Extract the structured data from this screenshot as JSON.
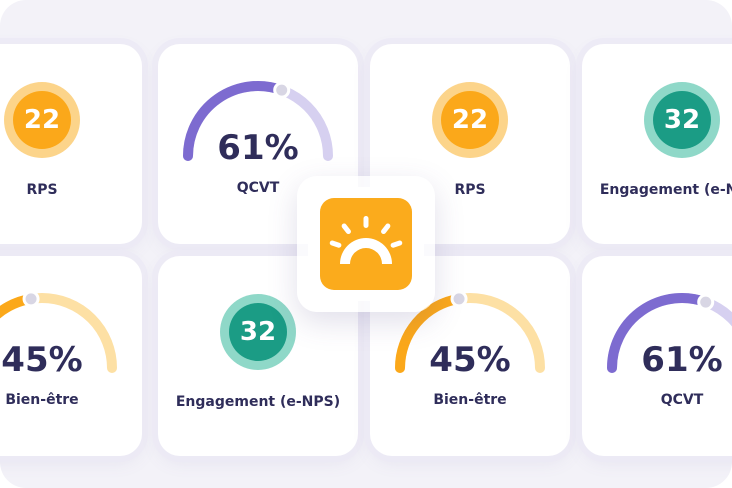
{
  "colors": {
    "orange": "#fba81a",
    "orange_ring": "#fcd48a",
    "teal": "#1b9c85",
    "teal_ring": "#8fd8c8",
    "purple": "#7d6bd0",
    "purple_light": "#d6d0f0",
    "gauge_orange": "#fba81a",
    "gauge_orange_light": "#fde0a4",
    "text": "#2f2d5a"
  },
  "cards": [
    {
      "kind": "circle",
      "value": "22",
      "label": "RPS",
      "color": "orange"
    },
    {
      "kind": "gauge",
      "value": "61%",
      "fraction": 0.61,
      "label": "QCVT",
      "color": "purple"
    },
    {
      "kind": "circle",
      "value": "22",
      "label": "RPS",
      "color": "orange"
    },
    {
      "kind": "circle",
      "value": "32",
      "label": "Engagement (e-NPS)",
      "color": "teal"
    },
    {
      "kind": "gauge",
      "value": "45%",
      "fraction": 0.45,
      "label": "Bien-être",
      "color": "orange"
    },
    {
      "kind": "circle",
      "value": "32",
      "label": "Engagement (e-NPS)",
      "color": "teal"
    },
    {
      "kind": "gauge",
      "value": "45%",
      "fraction": 0.45,
      "label": "Bien-être",
      "color": "orange"
    },
    {
      "kind": "gauge",
      "value": "61%",
      "fraction": 0.61,
      "label": "QCVT",
      "color": "purple"
    }
  ],
  "logo": {
    "icon": "sunrise-icon",
    "color": "#fbab1c"
  }
}
